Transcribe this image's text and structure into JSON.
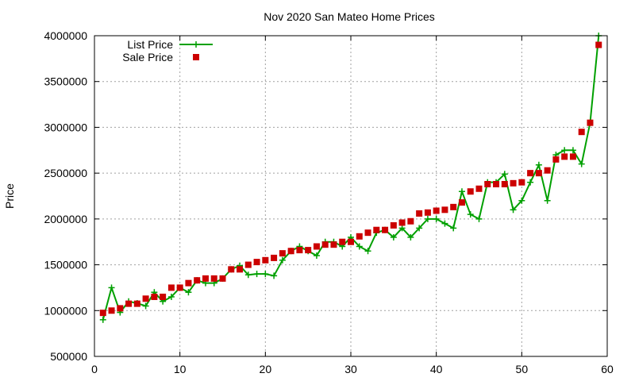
{
  "chart_data": {
    "type": "line",
    "title": "Nov 2020 San Mateo Home Prices",
    "xlabel": "",
    "ylabel": "Price",
    "xlim": [
      0,
      60
    ],
    "ylim": [
      500000,
      4000000
    ],
    "xticks": [
      "0",
      "10",
      "20",
      "30",
      "40",
      "50",
      "60"
    ],
    "yticks": [
      "500000",
      "1000000",
      "1500000",
      "2000000",
      "2500000",
      "3000000",
      "3500000",
      "4000000"
    ],
    "grid": true,
    "legend_position": "top-left",
    "x": [
      1,
      2,
      3,
      4,
      5,
      6,
      7,
      8,
      9,
      10,
      11,
      12,
      13,
      14,
      15,
      16,
      17,
      18,
      19,
      20,
      21,
      22,
      23,
      24,
      25,
      26,
      27,
      28,
      29,
      30,
      31,
      32,
      33,
      34,
      35,
      36,
      37,
      38,
      39,
      40,
      41,
      42,
      43,
      44,
      45,
      46,
      47,
      48,
      49,
      50,
      51,
      52,
      53,
      54,
      55,
      56,
      57,
      58,
      59
    ],
    "series": [
      {
        "name": "List Price",
        "color": "#00a000",
        "style": "line-with-plus-markers",
        "values": [
          900000,
          1250000,
          980000,
          1100000,
          1080000,
          1050000,
          1200000,
          1100000,
          1150000,
          1250000,
          1200000,
          1330000,
          1300000,
          1300000,
          1350000,
          1450000,
          1490000,
          1390000,
          1400000,
          1400000,
          1380000,
          1550000,
          1650000,
          1700000,
          1650000,
          1600000,
          1750000,
          1750000,
          1700000,
          1800000,
          1700000,
          1650000,
          1850000,
          1880000,
          1800000,
          1900000,
          1800000,
          1900000,
          2000000,
          2000000,
          1950000,
          1900000,
          2300000,
          2050000,
          2000000,
          2400000,
          2400000,
          2490000,
          2100000,
          2200000,
          2400000,
          2590000,
          2200000,
          2700000,
          2750000,
          2750000,
          2600000,
          3050000,
          4000000
        ]
      },
      {
        "name": "Sale Price",
        "color": "#cc0000",
        "style": "square-markers",
        "values": [
          975000,
          1000000,
          1025000,
          1075000,
          1075000,
          1130000,
          1150000,
          1150000,
          1250000,
          1250000,
          1300000,
          1330000,
          1350000,
          1350000,
          1350000,
          1450000,
          1450000,
          1500000,
          1530000,
          1550000,
          1575000,
          1625000,
          1650000,
          1660000,
          1660000,
          1700000,
          1720000,
          1720000,
          1750000,
          1750000,
          1810000,
          1850000,
          1880000,
          1880000,
          1930000,
          1960000,
          1975000,
          2060000,
          2070000,
          2090000,
          2100000,
          2130000,
          2180000,
          2300000,
          2330000,
          2380000,
          2380000,
          2380000,
          2390000,
          2400000,
          2500000,
          2500000,
          2530000,
          2650000,
          2680000,
          2680000,
          2950000,
          3050000,
          3900000
        ]
      }
    ]
  }
}
